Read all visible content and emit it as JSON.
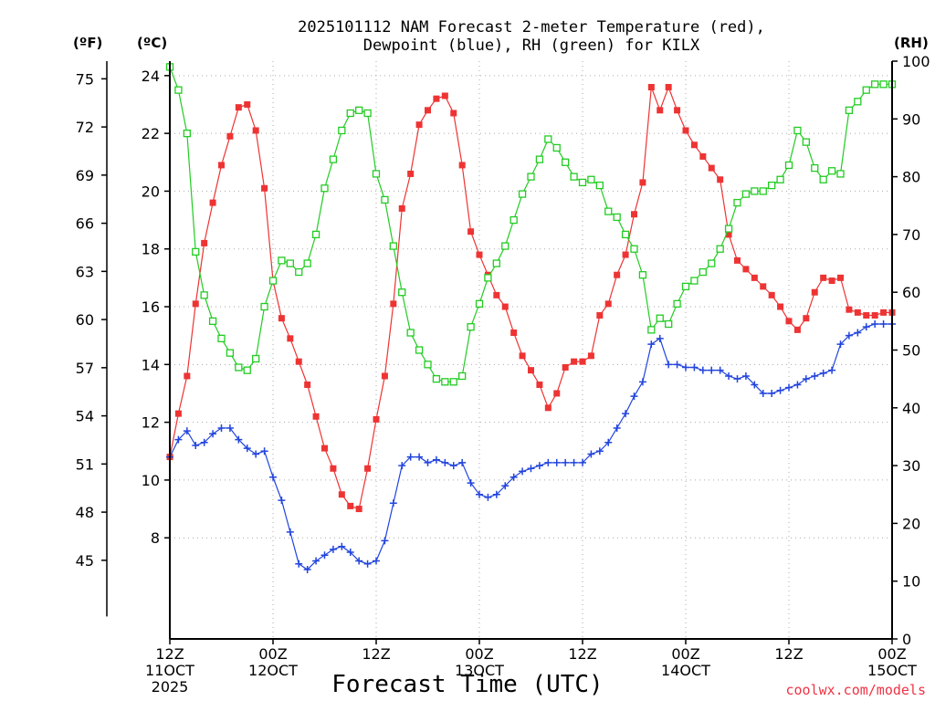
{
  "chart_data": {
    "type": "line",
    "title": [
      "2025101112 NAM Forecast 2-meter Temperature (red),",
      "Dewpoint (blue), RH (green) for KILX"
    ],
    "xlabel": "Forecast Time (UTC)",
    "credit": "coolwx.com/models",
    "units": {
      "fahrenheit": "(ºF)",
      "celsius": "(ºC)",
      "rh": "(RH)"
    },
    "xlim": [
      0,
      84
    ],
    "x_ticks": [
      {
        "x": 0,
        "lines": [
          "12Z",
          "11OCT",
          "2025"
        ]
      },
      {
        "x": 12,
        "lines": [
          "00Z",
          "12OCT"
        ]
      },
      {
        "x": 24,
        "lines": [
          "12Z"
        ]
      },
      {
        "x": 36,
        "lines": [
          "00Z",
          "13OCT"
        ]
      },
      {
        "x": 48,
        "lines": [
          "12Z"
        ]
      },
      {
        "x": 60,
        "lines": [
          "00Z",
          "14OCT"
        ]
      },
      {
        "x": 72,
        "lines": [
          "12Z"
        ]
      },
      {
        "x": 84,
        "lines": [
          "00Z",
          "15OCT"
        ]
      }
    ],
    "celsius_axis": {
      "range": [
        4.5,
        24.5
      ],
      "ticks": [
        "8",
        "10",
        "12",
        "14",
        "16",
        "18",
        "20",
        "22",
        "24"
      ]
    },
    "fahrenheit_axis": {
      "ticks": [
        "45",
        "48",
        "51",
        "54",
        "57",
        "60",
        "63",
        "66",
        "69",
        "72",
        "75"
      ]
    },
    "rh_axis": {
      "range": [
        0,
        100
      ],
      "ticks": [
        "0",
        "10",
        "20",
        "30",
        "40",
        "50",
        "60",
        "70",
        "80",
        "90",
        "100"
      ]
    },
    "series": [
      {
        "name": "Temperature",
        "color": "#ee3333",
        "axis": "celsius",
        "marker": "filled-square",
        "x": [
          0,
          1,
          2,
          3,
          4,
          5,
          6,
          7,
          8,
          9,
          10,
          11,
          12,
          13,
          14,
          15,
          16,
          17,
          18,
          19,
          20,
          21,
          22,
          23,
          24,
          25,
          26,
          27,
          28,
          29,
          30,
          31,
          32,
          33,
          34,
          35,
          36,
          37,
          38,
          39,
          40,
          41,
          42,
          43,
          44,
          45,
          46,
          47,
          48,
          49,
          50,
          51,
          52,
          53,
          54,
          55,
          56,
          57,
          58,
          59,
          60,
          61,
          62,
          63,
          64,
          65,
          66,
          67,
          68,
          69,
          70,
          71,
          72,
          73,
          74,
          75,
          76,
          77,
          78,
          79,
          80,
          81,
          82,
          83,
          84
        ],
        "values": [
          10.8,
          12.3,
          13.6,
          16.1,
          18.2,
          19.6,
          20.9,
          21.9,
          22.9,
          23.0,
          22.1,
          20.1,
          16.9,
          15.6,
          14.9,
          14.1,
          13.3,
          12.2,
          11.1,
          10.4,
          9.5,
          9.1,
          9.0,
          10.4,
          12.1,
          13.6,
          16.1,
          19.4,
          20.6,
          22.3,
          22.8,
          23.2,
          23.3,
          22.7,
          20.9,
          18.6,
          17.8,
          17.1,
          16.4,
          16.0,
          15.1,
          14.3,
          13.8,
          13.3,
          12.5,
          13.0,
          13.9,
          14.1,
          14.1,
          14.3,
          15.7,
          16.1,
          17.1,
          17.8,
          19.2,
          20.3,
          23.6,
          22.8,
          23.6,
          22.8,
          22.1,
          21.6,
          21.2,
          20.8,
          20.4,
          18.5,
          17.6,
          17.3,
          17.0,
          16.7,
          16.4,
          16.0,
          15.5,
          15.2,
          15.6,
          16.5,
          17.0,
          16.9,
          17.0,
          15.9,
          15.8,
          15.7,
          15.7,
          15.8,
          15.8
        ]
      },
      {
        "name": "Dewpoint",
        "color": "#2244dd",
        "axis": "celsius",
        "marker": "plus",
        "x": [
          0,
          1,
          2,
          3,
          4,
          5,
          6,
          7,
          8,
          9,
          10,
          11,
          12,
          13,
          14,
          15,
          16,
          17,
          18,
          19,
          20,
          21,
          22,
          23,
          24,
          25,
          26,
          27,
          28,
          29,
          30,
          31,
          32,
          33,
          34,
          35,
          36,
          37,
          38,
          39,
          40,
          41,
          42,
          43,
          44,
          45,
          46,
          47,
          48,
          49,
          50,
          51,
          52,
          53,
          54,
          55,
          56,
          57,
          58,
          59,
          60,
          61,
          62,
          63,
          64,
          65,
          66,
          67,
          68,
          69,
          70,
          71,
          72,
          73,
          74,
          75,
          76,
          77,
          78,
          79,
          80,
          81,
          82,
          83,
          84
        ],
        "values": [
          10.8,
          11.4,
          11.7,
          11.2,
          11.3,
          11.6,
          11.8,
          11.8,
          11.4,
          11.1,
          10.9,
          11.0,
          10.1,
          9.3,
          8.2,
          7.1,
          6.9,
          7.2,
          7.4,
          7.6,
          7.7,
          7.5,
          7.2,
          7.1,
          7.2,
          7.9,
          9.2,
          10.5,
          10.8,
          10.8,
          10.6,
          10.7,
          10.6,
          10.5,
          10.6,
          9.9,
          9.5,
          9.4,
          9.5,
          9.8,
          10.1,
          10.3,
          10.4,
          10.5,
          10.6,
          10.6,
          10.6,
          10.6,
          10.6,
          10.9,
          11.0,
          11.3,
          11.8,
          12.3,
          12.9,
          13.4,
          14.7,
          14.9,
          14.0,
          14.0,
          13.9,
          13.9,
          13.8,
          13.8,
          13.8,
          13.6,
          13.5,
          13.6,
          13.3,
          13.0,
          13.0,
          13.1,
          13.2,
          13.3,
          13.5,
          13.6,
          13.7,
          13.8,
          14.7,
          15.0,
          15.1,
          15.3,
          15.4,
          15.4,
          15.4
        ]
      },
      {
        "name": "RH",
        "color": "#22cc22",
        "axis": "rh",
        "marker": "open-square",
        "x": [
          0,
          1,
          2,
          3,
          4,
          5,
          6,
          7,
          8,
          9,
          10,
          11,
          12,
          13,
          14,
          15,
          16,
          17,
          18,
          19,
          20,
          21,
          22,
          23,
          24,
          25,
          26,
          27,
          28,
          29,
          30,
          31,
          32,
          33,
          34,
          35,
          36,
          37,
          38,
          39,
          40,
          41,
          42,
          43,
          44,
          45,
          46,
          47,
          48,
          49,
          50,
          51,
          52,
          53,
          54,
          55,
          56,
          57,
          58,
          59,
          60,
          61,
          62,
          63,
          64,
          65,
          66,
          67,
          68,
          69,
          70,
          71,
          72,
          73,
          74,
          75,
          76,
          77,
          78,
          79,
          80,
          81,
          82,
          83,
          84
        ],
        "values": [
          99,
          95,
          87.5,
          67,
          59.5,
          55,
          52,
          49.5,
          47,
          46.5,
          48.5,
          57.5,
          62,
          65.5,
          65,
          63.5,
          65,
          70,
          78,
          83,
          88,
          91,
          91.5,
          91,
          80.5,
          76,
          68,
          60,
          53,
          50,
          47.5,
          45,
          44.5,
          44.5,
          45.5,
          54,
          58,
          62.5,
          65,
          68,
          72.5,
          77,
          80,
          83,
          86.5,
          85,
          82.5,
          80,
          79,
          79.5,
          78.5,
          74,
          73,
          70,
          67.5,
          63,
          53.5,
          55.5,
          54.5,
          58,
          61,
          62,
          63.5,
          65,
          67.5,
          71,
          75.5,
          77,
          77.5,
          77.5,
          78.5,
          79.5,
          82,
          88,
          86,
          81.5,
          79.5,
          81,
          80.5,
          91.5,
          93,
          95,
          96,
          96,
          96
        ]
      }
    ]
  }
}
